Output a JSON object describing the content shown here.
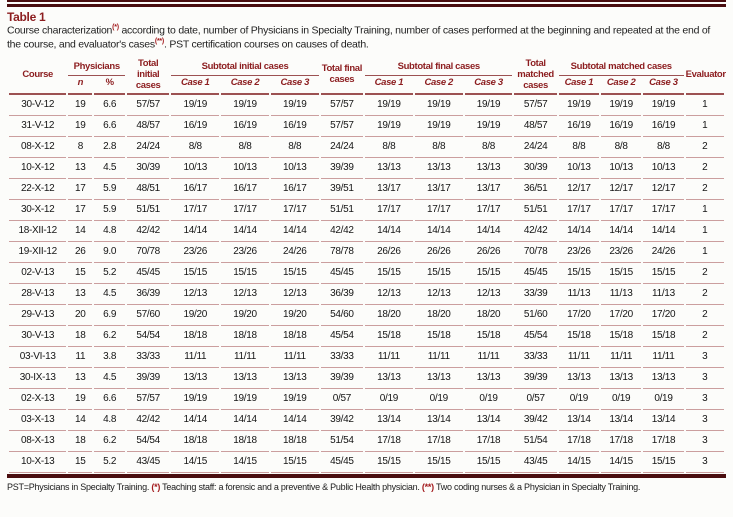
{
  "title": "Table 1",
  "caption": {
    "text_start": "Course characterization",
    "sup1": "(*)",
    "text_mid": " according to date, number of Physicians in Specialty Training, number of cases performed at the beginning and repeated at the end of the course, and evaluator's cases",
    "sup2": "(**)",
    "text_end": ". PST certification courses on causes of death."
  },
  "table": {
    "headers": {
      "course": "Course",
      "physicians_group": "Physicians",
      "n": "n",
      "pct": "%",
      "total_initial": "Total initial cases",
      "subtotal_initial_group": "Subtotal initial cases",
      "total_final": "Total final cases",
      "subtotal_final_group": "Subtotal final cases",
      "total_matched": "Total matched cases",
      "subtotal_matched_group": "Subtotal matched cases",
      "evaluator": "Evaluator",
      "case1": "Case 1",
      "case2": "Case 2",
      "case3": "Case 3"
    },
    "column_names": [
      "course",
      "n",
      "pct",
      "total-initial-cases",
      "initial-case-1",
      "initial-case-2",
      "initial-case-3",
      "total-final-cases",
      "final-case-1",
      "final-case-2",
      "final-case-3",
      "total-matched-cases",
      "matched-case-1",
      "matched-case-2",
      "matched-case-3",
      "evaluator"
    ],
    "rows": [
      [
        "30-V-12",
        "19",
        "6.6",
        "57/57",
        "19/19",
        "19/19",
        "19/19",
        "57/57",
        "19/19",
        "19/19",
        "19/19",
        "57/57",
        "19/19",
        "19/19",
        "19/19",
        "1"
      ],
      [
        "31-V-12",
        "19",
        "6.6",
        "48/57",
        "16/19",
        "16/19",
        "16/19",
        "57/57",
        "19/19",
        "19/19",
        "19/19",
        "48/57",
        "16/19",
        "16/19",
        "16/19",
        "1"
      ],
      [
        "08-X-12",
        "8",
        "2.8",
        "24/24",
        "8/8",
        "8/8",
        "8/8",
        "24/24",
        "8/8",
        "8/8",
        "8/8",
        "24/24",
        "8/8",
        "8/8",
        "8/8",
        "2"
      ],
      [
        "10-X-12",
        "13",
        "4.5",
        "30/39",
        "10/13",
        "10/13",
        "10/13",
        "39/39",
        "13/13",
        "13/13",
        "13/13",
        "30/39",
        "10/13",
        "10/13",
        "10/13",
        "2"
      ],
      [
        "22-X-12",
        "17",
        "5.9",
        "48/51",
        "16/17",
        "16/17",
        "16/17",
        "39/51",
        "13/17",
        "13/17",
        "13/17",
        "36/51",
        "12/17",
        "12/17",
        "12/17",
        "2"
      ],
      [
        "30-X-12",
        "17",
        "5.9",
        "51/51",
        "17/17",
        "17/17",
        "17/17",
        "51/51",
        "17/17",
        "17/17",
        "17/17",
        "51/51",
        "17/17",
        "17/17",
        "17/17",
        "1"
      ],
      [
        "18-XII-12",
        "14",
        "4.8",
        "42/42",
        "14/14",
        "14/14",
        "14/14",
        "42/42",
        "14/14",
        "14/14",
        "14/14",
        "42/42",
        "14/14",
        "14/14",
        "14/14",
        "1"
      ],
      [
        "19-XII-12",
        "26",
        "9.0",
        "70/78",
        "23/26",
        "23/26",
        "24/26",
        "78/78",
        "26/26",
        "26/26",
        "26/26",
        "70/78",
        "23/26",
        "23/26",
        "24/26",
        "1"
      ],
      [
        "02-V-13",
        "15",
        "5.2",
        "45/45",
        "15/15",
        "15/15",
        "15/15",
        "45/45",
        "15/15",
        "15/15",
        "15/15",
        "45/45",
        "15/15",
        "15/15",
        "15/15",
        "2"
      ],
      [
        "28-V-13",
        "13",
        "4.5",
        "36/39",
        "12/13",
        "12/13",
        "12/13",
        "36/39",
        "12/13",
        "12/13",
        "12/13",
        "33/39",
        "11/13",
        "11/13",
        "11/13",
        "2"
      ],
      [
        "29-V-13",
        "20",
        "6.9",
        "57/60",
        "19/20",
        "19/20",
        "19/20",
        "54/60",
        "18/20",
        "18/20",
        "18/20",
        "51/60",
        "17/20",
        "17/20",
        "17/20",
        "2"
      ],
      [
        "30-V-13",
        "18",
        "6.2",
        "54/54",
        "18/18",
        "18/18",
        "18/18",
        "45/54",
        "15/18",
        "15/18",
        "15/18",
        "45/54",
        "15/18",
        "15/18",
        "15/18",
        "2"
      ],
      [
        "03-VI-13",
        "11",
        "3.8",
        "33/33",
        "11/11",
        "11/11",
        "11/11",
        "33/33",
        "11/11",
        "11/11",
        "11/11",
        "33/33",
        "11/11",
        "11/11",
        "11/11",
        "3"
      ],
      [
        "30-IX-13",
        "13",
        "4.5",
        "39/39",
        "13/13",
        "13/13",
        "13/13",
        "39/39",
        "13/13",
        "13/13",
        "13/13",
        "39/39",
        "13/13",
        "13/13",
        "13/13",
        "3"
      ],
      [
        "02-X-13",
        "19",
        "6.6",
        "57/57",
        "19/19",
        "19/19",
        "19/19",
        "0/57",
        "0/19",
        "0/19",
        "0/19",
        "0/57",
        "0/19",
        "0/19",
        "0/19",
        "3"
      ],
      [
        "03-X-13",
        "14",
        "4.8",
        "42/42",
        "14/14",
        "14/14",
        "14/14",
        "39/42",
        "13/14",
        "13/14",
        "13/14",
        "39/42",
        "13/14",
        "13/14",
        "13/14",
        "3"
      ],
      [
        "08-X-13",
        "18",
        "6.2",
        "54/54",
        "18/18",
        "18/18",
        "18/18",
        "51/54",
        "17/18",
        "17/18",
        "17/18",
        "51/54",
        "17/18",
        "17/18",
        "17/18",
        "3"
      ],
      [
        "10-X-13",
        "15",
        "5.2",
        "43/45",
        "14/15",
        "14/15",
        "15/15",
        "45/45",
        "15/15",
        "15/15",
        "15/15",
        "43/45",
        "14/15",
        "14/15",
        "15/15",
        "3"
      ]
    ]
  },
  "footnote": {
    "part1": "PST=Physicians in Specialty Training. ",
    "marker1": "(*)",
    "part2": " Teaching staff: a forensic and a preventive & Public Health physician. ",
    "marker2": "(**)",
    "part3": " Two coding nurses & a Physician in Specialty Training."
  },
  "colors": {
    "maroon_header_text": "#8c1d1f",
    "dark_rule": "#4a0d0f",
    "medium_rule": "#9c5152",
    "light_row_rule": "#cb9e9e",
    "marker_red": "#a31b1e"
  }
}
